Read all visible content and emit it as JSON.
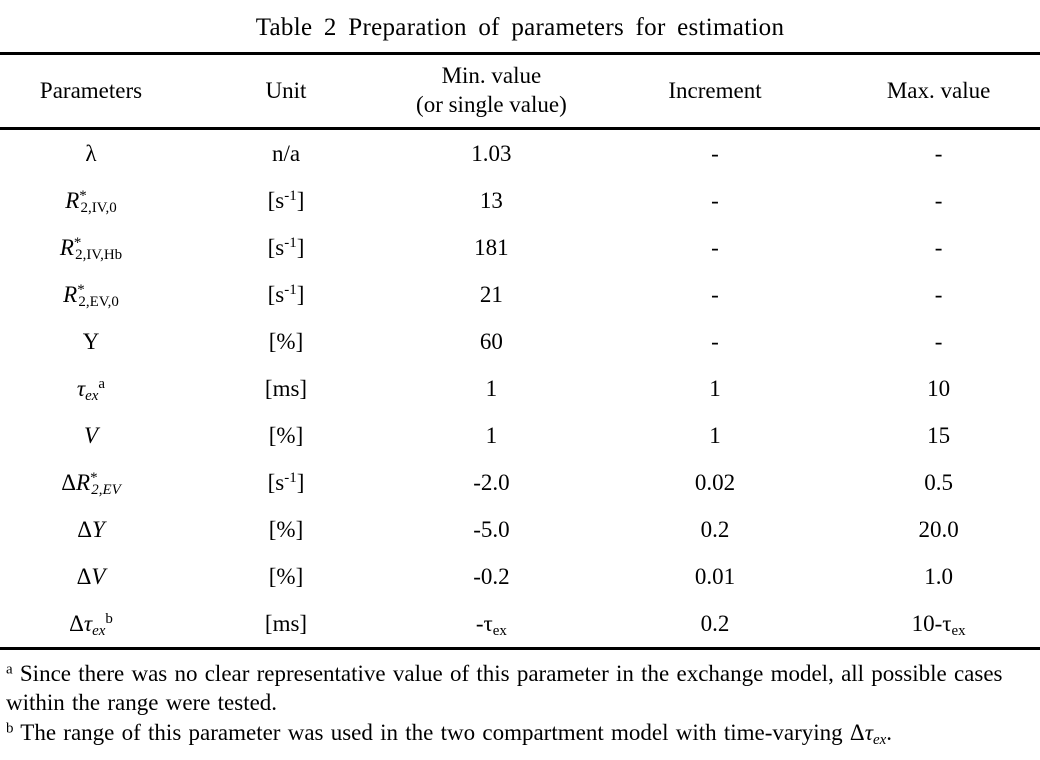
{
  "title": "Table 2 Preparation of parameters for estimation",
  "columns": {
    "parameters": "Parameters",
    "unit": "Unit",
    "min_line1": "Min. value",
    "min_line2": "(or single value)",
    "increment": "Increment",
    "max": "Max. value"
  },
  "rows": [
    {
      "param": [
        {
          "t": "λ"
        }
      ],
      "unit": [
        {
          "t": "n/a"
        }
      ],
      "min": [
        {
          "t": "1.03"
        }
      ],
      "inc": [
        {
          "t": "-"
        }
      ],
      "max": [
        {
          "t": "-"
        }
      ]
    },
    {
      "param": [
        {
          "t": "R",
          "i": true
        },
        {
          "t": "*",
          "pos": "sup"
        },
        {
          "t": "2,IV,0",
          "pos": "sub"
        }
      ],
      "unit": [
        {
          "t": "[s"
        },
        {
          "t": "-1",
          "pos": "sup"
        },
        {
          "t": "]"
        }
      ],
      "min": [
        {
          "t": "13"
        }
      ],
      "inc": [
        {
          "t": "-"
        }
      ],
      "max": [
        {
          "t": "-"
        }
      ]
    },
    {
      "param": [
        {
          "t": "R",
          "i": true
        },
        {
          "t": "*",
          "pos": "sup"
        },
        {
          "t": "2,IV,Hb",
          "pos": "sub"
        }
      ],
      "unit": [
        {
          "t": "[s"
        },
        {
          "t": "-1",
          "pos": "sup"
        },
        {
          "t": "]"
        }
      ],
      "min": [
        {
          "t": "181"
        }
      ],
      "inc": [
        {
          "t": "-"
        }
      ],
      "max": [
        {
          "t": "-"
        }
      ]
    },
    {
      "param": [
        {
          "t": "R",
          "i": true
        },
        {
          "t": "*",
          "pos": "sup"
        },
        {
          "t": "2,EV,0",
          "pos": "sub"
        }
      ],
      "unit": [
        {
          "t": "[s"
        },
        {
          "t": "-1",
          "pos": "sup"
        },
        {
          "t": "]"
        }
      ],
      "min": [
        {
          "t": "21"
        }
      ],
      "inc": [
        {
          "t": "-"
        }
      ],
      "max": [
        {
          "t": "-"
        }
      ]
    },
    {
      "param": [
        {
          "t": "Y"
        }
      ],
      "unit": [
        {
          "t": "[%]"
        }
      ],
      "min": [
        {
          "t": "60"
        }
      ],
      "inc": [
        {
          "t": "-"
        }
      ],
      "max": [
        {
          "t": "-"
        }
      ]
    },
    {
      "param": [
        {
          "t": "τ",
          "i": true
        },
        {
          "t": "ex",
          "pos": "sub",
          "i": true
        },
        {
          "t": "a",
          "pos": "sup"
        }
      ],
      "unit": [
        {
          "t": "[ms]"
        }
      ],
      "min": [
        {
          "t": "1"
        }
      ],
      "inc": [
        {
          "t": "1"
        }
      ],
      "max": [
        {
          "t": "10"
        }
      ]
    },
    {
      "param": [
        {
          "t": "V",
          "i": true
        }
      ],
      "unit": [
        {
          "t": "[%]"
        }
      ],
      "min": [
        {
          "t": "1"
        }
      ],
      "inc": [
        {
          "t": "1"
        }
      ],
      "max": [
        {
          "t": "15"
        }
      ]
    },
    {
      "param": [
        {
          "t": "Δ"
        },
        {
          "t": "R",
          "i": true
        },
        {
          "t": "*",
          "pos": "sup"
        },
        {
          "t": "2,EV",
          "pos": "sub",
          "i": true
        }
      ],
      "unit": [
        {
          "t": "[s"
        },
        {
          "t": "-1",
          "pos": "sup"
        },
        {
          "t": "]"
        }
      ],
      "min": [
        {
          "t": "-2.0"
        }
      ],
      "inc": [
        {
          "t": "0.02"
        }
      ],
      "max": [
        {
          "t": "0.5"
        }
      ]
    },
    {
      "param": [
        {
          "t": "Δ"
        },
        {
          "t": "Y",
          "i": true
        }
      ],
      "unit": [
        {
          "t": "[%]"
        }
      ],
      "min": [
        {
          "t": "-5.0"
        }
      ],
      "inc": [
        {
          "t": "0.2"
        }
      ],
      "max": [
        {
          "t": "20.0"
        }
      ]
    },
    {
      "param": [
        {
          "t": "Δ"
        },
        {
          "t": "V",
          "i": true
        }
      ],
      "unit": [
        {
          "t": "[%]"
        }
      ],
      "min": [
        {
          "t": "-0.2"
        }
      ],
      "inc": [
        {
          "t": "0.01"
        }
      ],
      "max": [
        {
          "t": "1.0"
        }
      ]
    },
    {
      "param": [
        {
          "t": "Δ"
        },
        {
          "t": "τ",
          "i": true
        },
        {
          "t": "ex",
          "pos": "sub",
          "i": true
        },
        {
          "t": "b",
          "pos": "sup"
        }
      ],
      "unit": [
        {
          "t": "[ms]"
        }
      ],
      "min": [
        {
          "t": "-τ"
        },
        {
          "t": "ex",
          "pos": "sub"
        }
      ],
      "inc": [
        {
          "t": "0.2"
        }
      ],
      "max": [
        {
          "t": "10-τ"
        },
        {
          "t": "ex",
          "pos": "sub"
        }
      ]
    }
  ],
  "footnotes": [
    [
      {
        "t": "a",
        "pos": "sup"
      },
      {
        "t": " Since there was no clear representative value of this parameter in the exchange model, all possible cases within the range were tested."
      }
    ],
    [
      {
        "t": "b",
        "pos": "sup"
      },
      {
        "t": " The range of this parameter was used in the two compartment model with time-varying "
      },
      {
        "t": "Δ"
      },
      {
        "t": "τ",
        "i": true
      },
      {
        "t": "ex",
        "pos": "sub",
        "i": true
      },
      {
        "t": "."
      }
    ]
  ]
}
